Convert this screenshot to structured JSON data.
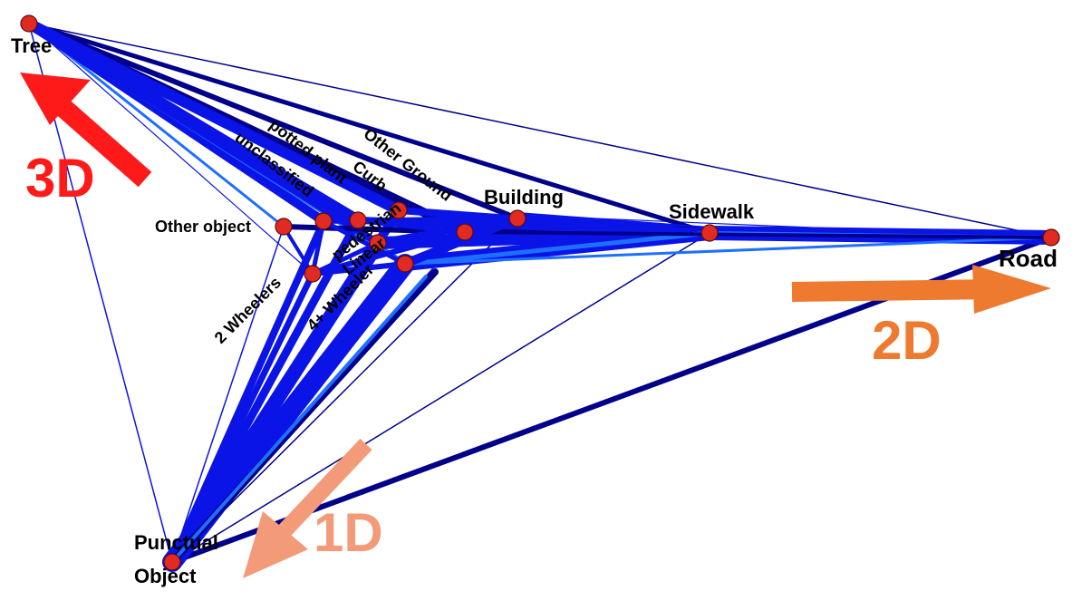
{
  "nodes": {
    "tree": "Tree",
    "road": "Road",
    "punctual_1": "Punctual",
    "punctual_2": "Object",
    "sidewalk": "Sidewalk",
    "building": "Building",
    "other_ground": "Other Ground",
    "curb": "Curb",
    "potted_plant": "potted plant",
    "unclassified": "unclassified",
    "other_object": "Other object",
    "pedestrian": "pedestrian",
    "linear": "Linear",
    "two_wheelers": "2 Wheelers",
    "four_wheeler": "4+ Wheeler"
  },
  "axes": {
    "three_d": "3D",
    "two_d": "2D",
    "one_d": "1D"
  },
  "colors": {
    "edge_dark": "#00008b",
    "edge_blue": "#0a14e6",
    "edge_light": "#1f6fff",
    "node_fill": "#e02a22",
    "arrow_3d": "#ff1a1a",
    "arrow_2d": "#ee7a30",
    "arrow_1d": "#f39b78"
  }
}
